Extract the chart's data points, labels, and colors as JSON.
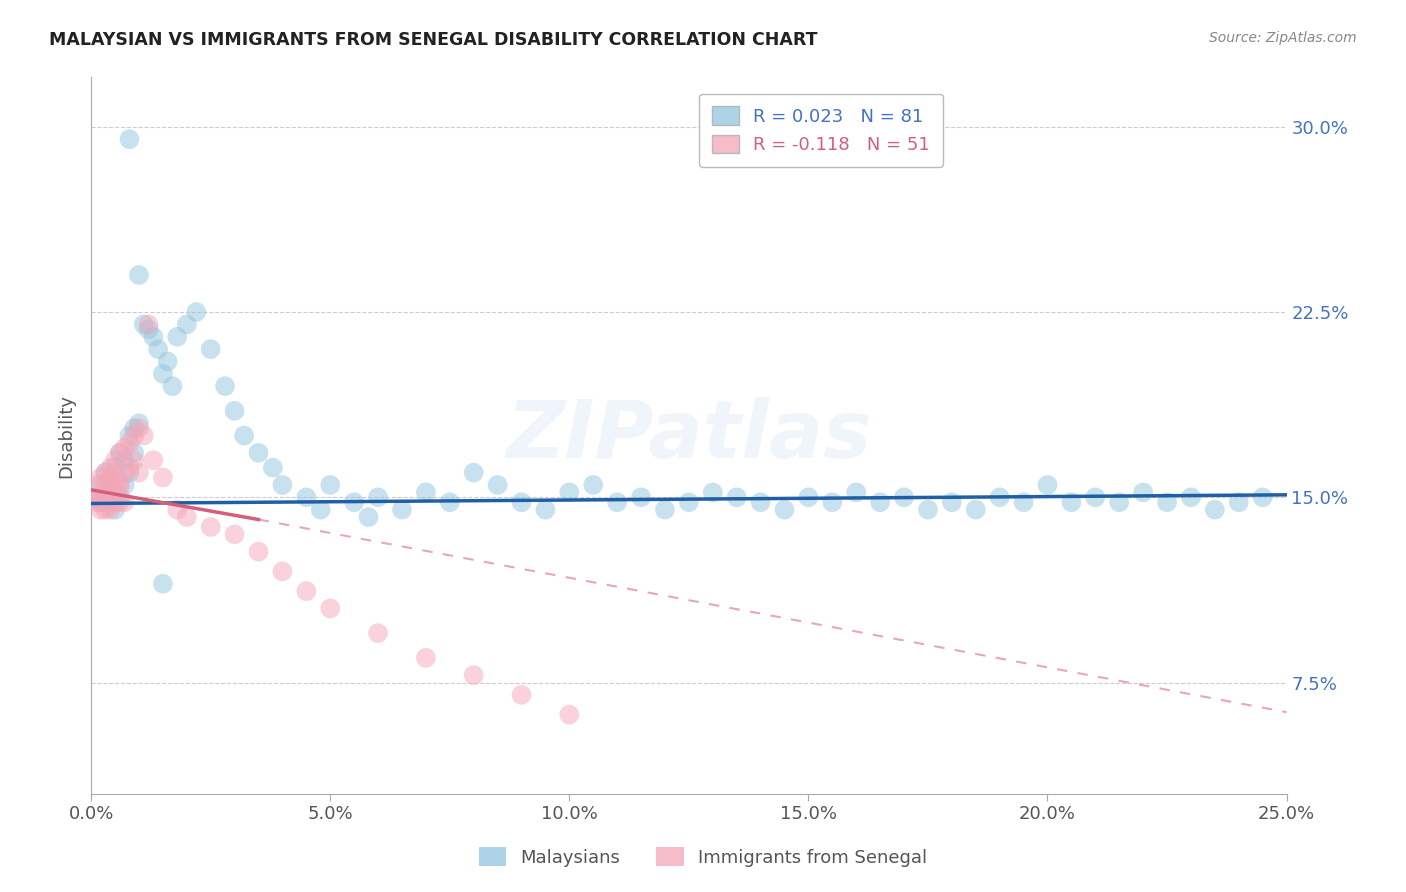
{
  "title": "MALAYSIAN VS IMMIGRANTS FROM SENEGAL DISABILITY CORRELATION CHART",
  "source": "Source: ZipAtlas.com",
  "xlabel_ticks": [
    "0.0%",
    "5.0%",
    "10.0%",
    "15.0%",
    "20.0%",
    "25.0%"
  ],
  "ylabel_ticks_right": [
    "7.5%",
    "15.0%",
    "22.5%",
    "30.0%"
  ],
  "xlim": [
    0,
    0.25
  ],
  "ylim": [
    0.03,
    0.32
  ],
  "watermark": "ZIPatlas",
  "legend_label1": "R = 0.023   N = 81",
  "legend_label2": "R = -0.118   N = 51",
  "color_blue": "#92c5de",
  "color_pink": "#f4a6b8",
  "trendline_blue": "#1f5fa6",
  "trendline_pink": "#d45f7a",
  "malaysian_x": [
    0.001,
    0.002,
    0.002,
    0.003,
    0.003,
    0.004,
    0.004,
    0.005,
    0.005,
    0.006,
    0.006,
    0.007,
    0.007,
    0.008,
    0.008,
    0.009,
    0.009,
    0.01,
    0.011,
    0.012,
    0.013,
    0.014,
    0.015,
    0.016,
    0.017,
    0.018,
    0.02,
    0.022,
    0.025,
    0.028,
    0.03,
    0.032,
    0.035,
    0.038,
    0.04,
    0.045,
    0.048,
    0.05,
    0.055,
    0.058,
    0.06,
    0.065,
    0.07,
    0.075,
    0.08,
    0.085,
    0.09,
    0.095,
    0.1,
    0.105,
    0.11,
    0.115,
    0.12,
    0.125,
    0.13,
    0.135,
    0.14,
    0.145,
    0.15,
    0.155,
    0.16,
    0.165,
    0.17,
    0.175,
    0.18,
    0.185,
    0.19,
    0.195,
    0.2,
    0.205,
    0.21,
    0.215,
    0.22,
    0.225,
    0.23,
    0.235,
    0.24,
    0.245,
    0.008,
    0.01,
    0.015
  ],
  "malaysian_y": [
    0.15,
    0.148,
    0.155,
    0.152,
    0.16,
    0.148,
    0.155,
    0.145,
    0.162,
    0.15,
    0.168,
    0.155,
    0.165,
    0.175,
    0.16,
    0.178,
    0.168,
    0.18,
    0.22,
    0.218,
    0.215,
    0.21,
    0.2,
    0.205,
    0.195,
    0.215,
    0.22,
    0.225,
    0.21,
    0.195,
    0.185,
    0.175,
    0.168,
    0.162,
    0.155,
    0.15,
    0.145,
    0.155,
    0.148,
    0.142,
    0.15,
    0.145,
    0.152,
    0.148,
    0.16,
    0.155,
    0.148,
    0.145,
    0.152,
    0.155,
    0.148,
    0.15,
    0.145,
    0.148,
    0.152,
    0.15,
    0.148,
    0.145,
    0.15,
    0.148,
    0.152,
    0.148,
    0.15,
    0.145,
    0.148,
    0.145,
    0.15,
    0.148,
    0.155,
    0.148,
    0.15,
    0.148,
    0.152,
    0.148,
    0.15,
    0.145,
    0.148,
    0.15,
    0.295,
    0.24,
    0.115
  ],
  "senegal_x": [
    0.001,
    0.001,
    0.002,
    0.002,
    0.002,
    0.003,
    0.003,
    0.003,
    0.003,
    0.004,
    0.004,
    0.004,
    0.004,
    0.005,
    0.005,
    0.005,
    0.005,
    0.006,
    0.006,
    0.006,
    0.007,
    0.007,
    0.007,
    0.008,
    0.008,
    0.009,
    0.009,
    0.01,
    0.01,
    0.011,
    0.012,
    0.013,
    0.015,
    0.018,
    0.02,
    0.025,
    0.03,
    0.035,
    0.04,
    0.045,
    0.05,
    0.06,
    0.07,
    0.08,
    0.09,
    0.1,
    0.002,
    0.003,
    0.004,
    0.005,
    0.006
  ],
  "senegal_y": [
    0.148,
    0.155,
    0.15,
    0.158,
    0.145,
    0.152,
    0.16,
    0.148,
    0.155,
    0.162,
    0.15,
    0.158,
    0.145,
    0.165,
    0.155,
    0.148,
    0.16,
    0.168,
    0.155,
    0.148,
    0.17,
    0.16,
    0.148,
    0.172,
    0.162,
    0.175,
    0.165,
    0.178,
    0.16,
    0.175,
    0.22,
    0.165,
    0.158,
    0.145,
    0.142,
    0.138,
    0.135,
    0.128,
    0.12,
    0.112,
    0.105,
    0.095,
    0.085,
    0.078,
    0.07,
    0.062,
    0.148,
    0.145,
    0.152,
    0.148,
    0.155
  ],
  "blue_trend_x0": 0.0,
  "blue_trend_x1": 0.25,
  "blue_trend_y0": 0.1475,
  "blue_trend_y1": 0.151,
  "pink_trend_solid_x0": 0.0,
  "pink_trend_solid_x1": 0.035,
  "pink_trend_y0": 0.153,
  "pink_trend_y1": 0.141,
  "pink_trend_dash_x0": 0.035,
  "pink_trend_dash_x1": 0.25,
  "pink_trend_dash_y0": 0.141,
  "pink_trend_dash_y1": 0.063
}
